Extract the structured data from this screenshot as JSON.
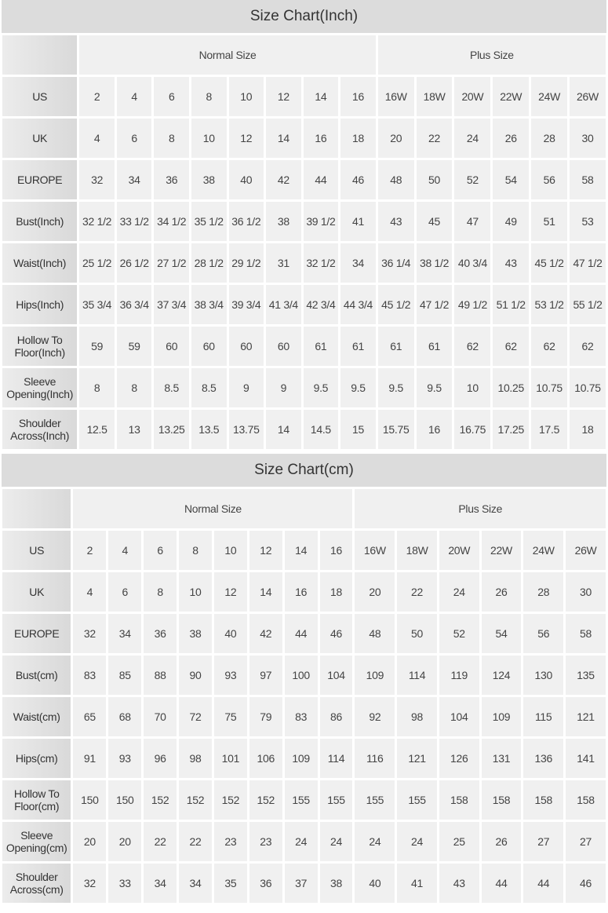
{
  "tables": [
    {
      "title": "Size Chart(Inch)",
      "normal_label": "Normal Size",
      "plus_label": "Plus Size",
      "rows": [
        {
          "label": "US",
          "values": [
            "2",
            "4",
            "6",
            "8",
            "10",
            "12",
            "14",
            "16",
            "16W",
            "18W",
            "20W",
            "22W",
            "24W",
            "26W"
          ]
        },
        {
          "label": "UK",
          "values": [
            "4",
            "6",
            "8",
            "10",
            "12",
            "14",
            "16",
            "18",
            "20",
            "22",
            "24",
            "26",
            "28",
            "30"
          ]
        },
        {
          "label": "EUROPE",
          "values": [
            "32",
            "34",
            "36",
            "38",
            "40",
            "42",
            "44",
            "46",
            "48",
            "50",
            "52",
            "54",
            "56",
            "58"
          ]
        },
        {
          "label": "Bust(Inch)",
          "values": [
            "32 1/2",
            "33 1/2",
            "34 1/2",
            "35 1/2",
            "36 1/2",
            "38",
            "39 1/2",
            "41",
            "43",
            "45",
            "47",
            "49",
            "51",
            "53"
          ]
        },
        {
          "label": "Waist(Inch)",
          "values": [
            "25 1/2",
            "26 1/2",
            "27 1/2",
            "28 1/2",
            "29 1/2",
            "31",
            "32 1/2",
            "34",
            "36 1/4",
            "38 1/2",
            "40 3/4",
            "43",
            "45 1/2",
            "47 1/2"
          ]
        },
        {
          "label": "Hips(Inch)",
          "values": [
            "35 3/4",
            "36 3/4",
            "37 3/4",
            "38 3/4",
            "39 3/4",
            "41 3/4",
            "42 3/4",
            "44 3/4",
            "45 1/2",
            "47 1/2",
            "49 1/2",
            "51 1/2",
            "53 1/2",
            "55 1/2"
          ]
        },
        {
          "label": "Hollow To Floor(Inch)",
          "values": [
            "59",
            "59",
            "60",
            "60",
            "60",
            "60",
            "61",
            "61",
            "61",
            "61",
            "62",
            "62",
            "62",
            "62"
          ]
        },
        {
          "label": "Sleeve Opening(Inch)",
          "values": [
            "8",
            "8",
            "8.5",
            "8.5",
            "9",
            "9",
            "9.5",
            "9.5",
            "9.5",
            "9.5",
            "10",
            "10.25",
            "10.75",
            "10.75"
          ]
        },
        {
          "label": "Shoulder Across(Inch)",
          "values": [
            "12.5",
            "13",
            "13.25",
            "13.5",
            "13.75",
            "14",
            "14.5",
            "15",
            "15.75",
            "16",
            "16.75",
            "17.25",
            "17.5",
            "18"
          ]
        }
      ]
    },
    {
      "title": "Size Chart(cm)",
      "normal_label": "Normal Size",
      "plus_label": "Plus Size",
      "rows": [
        {
          "label": "US",
          "values": [
            "2",
            "4",
            "6",
            "8",
            "10",
            "12",
            "14",
            "16",
            "16W",
            "18W",
            "20W",
            "22W",
            "24W",
            "26W"
          ]
        },
        {
          "label": "UK",
          "values": [
            "4",
            "6",
            "8",
            "10",
            "12",
            "14",
            "16",
            "18",
            "20",
            "22",
            "24",
            "26",
            "28",
            "30"
          ]
        },
        {
          "label": "EUROPE",
          "values": [
            "32",
            "34",
            "36",
            "38",
            "40",
            "42",
            "44",
            "46",
            "48",
            "50",
            "52",
            "54",
            "56",
            "58"
          ]
        },
        {
          "label": "Bust(cm)",
          "values": [
            "83",
            "85",
            "88",
            "90",
            "93",
            "97",
            "100",
            "104",
            "109",
            "114",
            "119",
            "124",
            "130",
            "135"
          ]
        },
        {
          "label": "Waist(cm)",
          "values": [
            "65",
            "68",
            "70",
            "72",
            "75",
            "79",
            "83",
            "86",
            "92",
            "98",
            "104",
            "109",
            "115",
            "121"
          ]
        },
        {
          "label": "Hips(cm)",
          "values": [
            "91",
            "93",
            "96",
            "98",
            "101",
            "106",
            "109",
            "114",
            "116",
            "121",
            "126",
            "131",
            "136",
            "141"
          ]
        },
        {
          "label": "Hollow To Floor(cm)",
          "values": [
            "150",
            "150",
            "152",
            "152",
            "152",
            "152",
            "155",
            "155",
            "155",
            "155",
            "158",
            "158",
            "158",
            "158"
          ]
        },
        {
          "label": "Sleeve Opening(cm)",
          "values": [
            "20",
            "20",
            "22",
            "22",
            "23",
            "23",
            "24",
            "24",
            "24",
            "24",
            "25",
            "26",
            "27",
            "27"
          ]
        },
        {
          "label": "Shoulder Across(cm)",
          "values": [
            "32",
            "33",
            "34",
            "34",
            "35",
            "36",
            "37",
            "38",
            "40",
            "41",
            "43",
            "44",
            "44",
            "46"
          ]
        }
      ]
    }
  ]
}
